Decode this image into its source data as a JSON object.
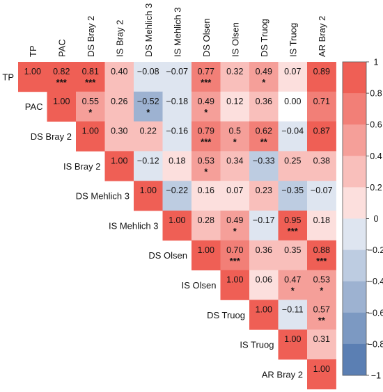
{
  "chart_data": {
    "type": "heatmap",
    "title": "",
    "variables": [
      "TP",
      "PAC",
      "DS Bray 2",
      "IS Bray 2",
      "DS Mehlich 3",
      "IS Mehlich 3",
      "DS Olsen",
      "IS Olsen",
      "DS Truog",
      "IS Truog",
      "AR Bray 2"
    ],
    "matrix": [
      [
        "1.00",
        "0.82",
        "0.81",
        "0.40",
        "−0.08",
        "−0.07",
        "0.77",
        "0.32",
        "0.49",
        "0.07",
        "0.89"
      ],
      [
        null,
        "1.00",
        "0.55",
        "0.26",
        "−0.52",
        "−0.18",
        "0.49",
        "0.12",
        "0.36",
        "0.00",
        "0.71"
      ],
      [
        null,
        null,
        "1.00",
        "0.30",
        "0.22",
        "−0.16",
        "0.79",
        "0.5",
        "0.62",
        "−0.04",
        "0.87"
      ],
      [
        null,
        null,
        null,
        "1.00",
        "−0.12",
        "0.18",
        "0.53",
        "0.34",
        "−0.33",
        "0.25",
        "0.38"
      ],
      [
        null,
        null,
        null,
        null,
        "1.00",
        "−0.22",
        "0.16",
        "0.07",
        "0.23",
        "−0.35",
        "−0.07"
      ],
      [
        null,
        null,
        null,
        null,
        null,
        "1.00",
        "0.28",
        "0.49",
        "−0.17",
        "0.95",
        "0.18"
      ],
      [
        null,
        null,
        null,
        null,
        null,
        null,
        "1.00",
        "0.70",
        "0.36",
        "0.35",
        "0.88"
      ],
      [
        null,
        null,
        null,
        null,
        null,
        null,
        null,
        "1.00",
        "0.06",
        "0.47",
        "0.53"
      ],
      [
        null,
        null,
        null,
        null,
        null,
        null,
        null,
        null,
        "1.00",
        "−0.11",
        "0.57"
      ],
      [
        null,
        null,
        null,
        null,
        null,
        null,
        null,
        null,
        null,
        "1.00",
        "0.31"
      ],
      [
        null,
        null,
        null,
        null,
        null,
        null,
        null,
        null,
        null,
        null,
        "1.00"
      ]
    ],
    "significance": [
      [
        "",
        "***",
        "***",
        "",
        "",
        "",
        "***",
        "",
        "*",
        "",
        ""
      ],
      [
        "",
        "",
        "*",
        "",
        "*",
        "",
        "*",
        "",
        "",
        "",
        ""
      ],
      [
        "",
        "",
        "",
        "",
        "",
        "",
        "***",
        "*",
        "**",
        "",
        ""
      ],
      [
        "",
        "",
        "",
        "",
        "",
        "",
        "*",
        "",
        "",
        "",
        ""
      ],
      [
        "",
        "",
        "",
        "",
        "",
        "",
        "",
        "",
        "",
        "",
        ""
      ],
      [
        "",
        "",
        "",
        "",
        "",
        "",
        "",
        "*",
        "",
        "***",
        ""
      ],
      [
        "",
        "",
        "",
        "",
        "",
        "",
        "",
        "***",
        "",
        "",
        "***"
      ],
      [
        "",
        "",
        "",
        "",
        "",
        "",
        "",
        "",
        "",
        "*",
        "*"
      ],
      [
        "",
        "",
        "",
        "",
        "",
        "",
        "",
        "",
        "",
        "",
        "**"
      ],
      [
        "",
        "",
        "",
        "",
        "",
        "",
        "",
        "",
        "",
        "",
        ""
      ],
      [
        "",
        "",
        "",
        "",
        "",
        "",
        "",
        "",
        "",
        "",
        ""
      ]
    ],
    "colorbar": {
      "range": [
        -1,
        1
      ],
      "ticks": [
        "1",
        "0.8",
        "0.6",
        "0.4",
        "0.2",
        "0",
        "−0.2",
        "−0.4",
        "−0.6",
        "−0.8",
        "−1"
      ],
      "low_color": "#5b7fb3",
      "mid_color": "#ffffff",
      "high_color": "#ef5f55"
    },
    "legend_position": "right",
    "grid": false
  }
}
